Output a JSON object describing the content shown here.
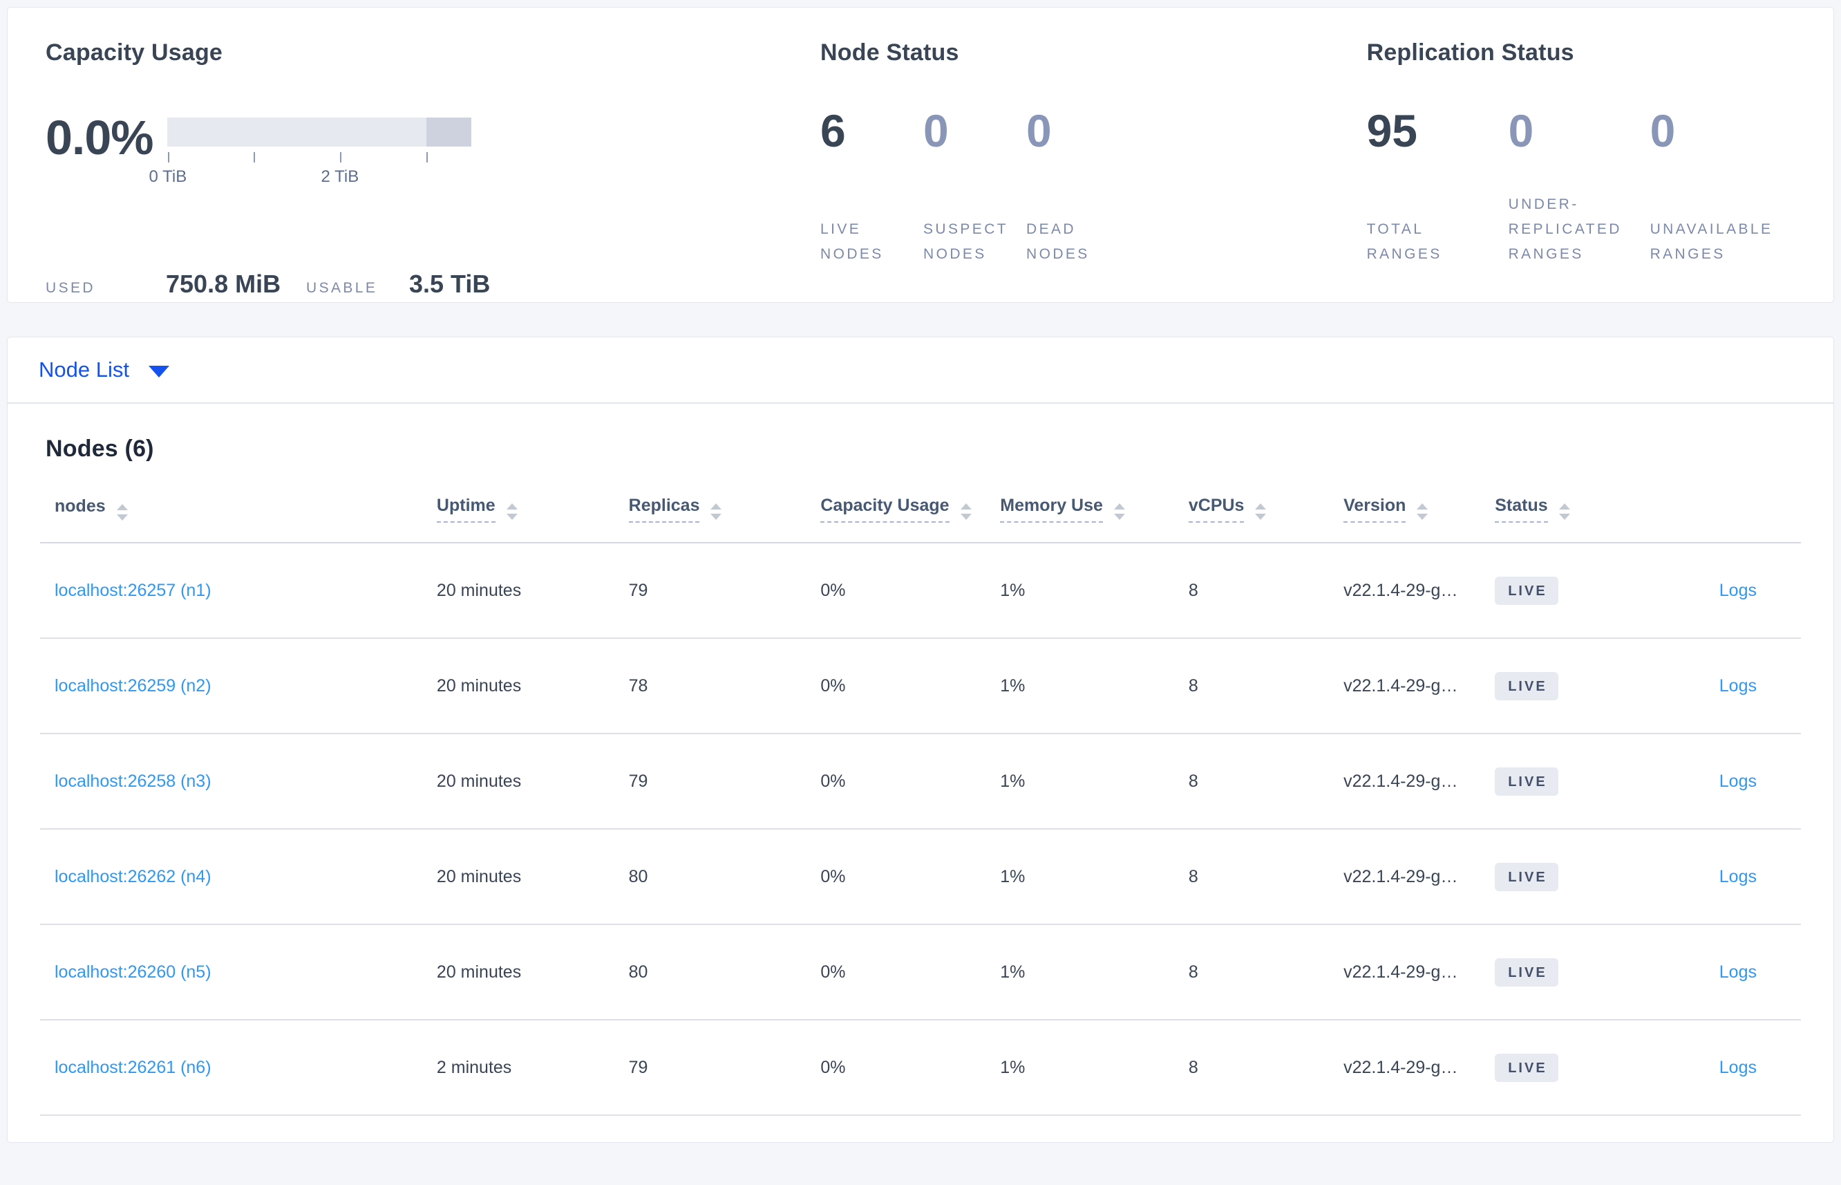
{
  "overview": {
    "capacity": {
      "title": "Capacity Usage",
      "percent": "0.0%",
      "used_label": "USED",
      "used_value": "750.8 MiB",
      "usable_label": "USABLE",
      "usable_value": "3.5 TiB",
      "bar": {
        "segments": [
          {
            "name": "usable-capacity",
            "fraction": 0.852,
            "color": "#e7e9f0"
          },
          {
            "name": "non-usable-capacity",
            "fraction": 0.148,
            "color": "#cdd2de"
          }
        ],
        "ticks": [
          {
            "position": 0.002,
            "label": "0 TiB"
          },
          {
            "position": 0.285,
            "label": ""
          },
          {
            "position": 0.568,
            "label": "2 TiB"
          },
          {
            "position": 0.852,
            "label": ""
          }
        ]
      }
    },
    "node_status": {
      "title": "Node Status",
      "stats": [
        {
          "value": "6",
          "label": "LIVE NODES",
          "emphasized": true
        },
        {
          "value": "0",
          "label": "SUSPECT NODES",
          "emphasized": false
        },
        {
          "value": "0",
          "label": "DEAD NODES",
          "emphasized": false
        }
      ]
    },
    "replication_status": {
      "title": "Replication Status",
      "stats": [
        {
          "value": "95",
          "label": "TOTAL RANGES",
          "emphasized": true
        },
        {
          "value": "0",
          "label": "UNDER-REPLICATED RANGES",
          "emphasized": false
        },
        {
          "value": "0",
          "label": "UNAVAILABLE RANGES",
          "emphasized": false
        }
      ]
    }
  },
  "view_switcher": {
    "selected": "Node List"
  },
  "nodes_table": {
    "title": "Nodes (6)",
    "columns": [
      {
        "label": "nodes",
        "dashed": false
      },
      {
        "label": "Uptime",
        "dashed": true
      },
      {
        "label": "Replicas",
        "dashed": true
      },
      {
        "label": "Capacity Usage",
        "dashed": true
      },
      {
        "label": "Memory Use",
        "dashed": true
      },
      {
        "label": "vCPUs",
        "dashed": true
      },
      {
        "label": "Version",
        "dashed": true
      },
      {
        "label": "Status",
        "dashed": true
      }
    ],
    "rows": [
      {
        "address": "localhost:26257 (n1)",
        "uptime": "20 minutes",
        "replicas": "79",
        "capacity_usage": "0%",
        "memory_use": "1%",
        "vcpus": "8",
        "version": "v22.1.4-29-g…",
        "status": "LIVE",
        "logs_label": "Logs"
      },
      {
        "address": "localhost:26259 (n2)",
        "uptime": "20 minutes",
        "replicas": "78",
        "capacity_usage": "0%",
        "memory_use": "1%",
        "vcpus": "8",
        "version": "v22.1.4-29-g…",
        "status": "LIVE",
        "logs_label": "Logs"
      },
      {
        "address": "localhost:26258 (n3)",
        "uptime": "20 minutes",
        "replicas": "79",
        "capacity_usage": "0%",
        "memory_use": "1%",
        "vcpus": "8",
        "version": "v22.1.4-29-g…",
        "status": "LIVE",
        "logs_label": "Logs"
      },
      {
        "address": "localhost:26262 (n4)",
        "uptime": "20 minutes",
        "replicas": "80",
        "capacity_usage": "0%",
        "memory_use": "1%",
        "vcpus": "8",
        "version": "v22.1.4-29-g…",
        "status": "LIVE",
        "logs_label": "Logs"
      },
      {
        "address": "localhost:26260 (n5)",
        "uptime": "20 minutes",
        "replicas": "80",
        "capacity_usage": "0%",
        "memory_use": "1%",
        "vcpus": "8",
        "version": "v22.1.4-29-g…",
        "status": "LIVE",
        "logs_label": "Logs"
      },
      {
        "address": "localhost:26261 (n6)",
        "uptime": "2 minutes",
        "replicas": "79",
        "capacity_usage": "0%",
        "memory_use": "1%",
        "vcpus": "8",
        "version": "v22.1.4-29-g…",
        "status": "LIVE",
        "logs_label": "Logs"
      }
    ]
  },
  "colors": {
    "accent_blue": "#1452f0",
    "link_blue": "#2f98f4",
    "heading_text": "#394455",
    "muted_label": "#7d89a8",
    "dimmed_value": "#8996b8",
    "badge_bg": "#e7eaf1",
    "page_bg": "#f4f6fa"
  }
}
